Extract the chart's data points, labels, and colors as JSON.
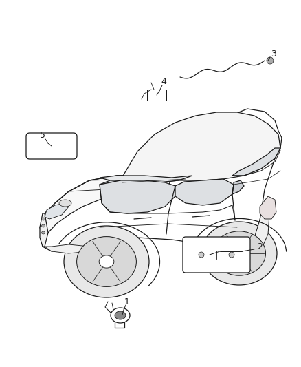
{
  "background_color": "#ffffff",
  "line_color": "#1a1a1a",
  "fig_width": 4.38,
  "fig_height": 5.33,
  "dpi": 100,
  "label_fontsize": 9,
  "lw": 0.9
}
